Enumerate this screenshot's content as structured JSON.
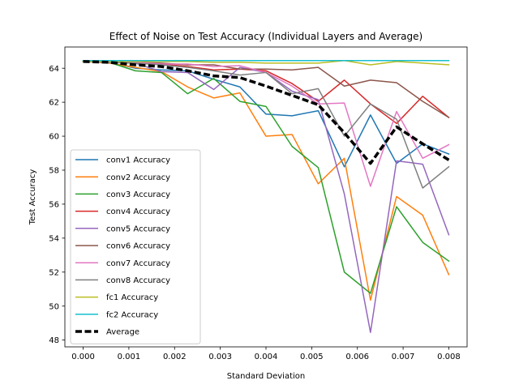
{
  "chart_data": {
    "type": "line",
    "title": "Effect of Noise on Test Accuracy (Individual Layers and Average)",
    "xlabel": "Standard Deviation",
    "ylabel": "Test Accuracy",
    "xlim": [
      -0.0004,
      0.0084
    ],
    "ylim": [
      47.6,
      65.25
    ],
    "xticks": [
      0.0,
      0.001,
      0.002,
      0.003,
      0.004,
      0.005,
      0.006,
      0.007,
      0.008
    ],
    "xtick_labels": [
      "0.000",
      "0.001",
      "0.002",
      "0.003",
      "0.004",
      "0.005",
      "0.006",
      "0.007",
      "0.008"
    ],
    "yticks": [
      48,
      50,
      52,
      54,
      56,
      58,
      60,
      62,
      64
    ],
    "ytick_labels": [
      "48",
      "50",
      "52",
      "54",
      "56",
      "58",
      "60",
      "62",
      "64"
    ],
    "grid": false,
    "legend_position": "lower-left",
    "x": [
      0.0,
      0.000571,
      0.001143,
      0.001714,
      0.002286,
      0.002857,
      0.003429,
      0.004,
      0.004571,
      0.005143,
      0.005714,
      0.006286,
      0.006857,
      0.007429,
      0.008
    ],
    "series": [
      {
        "name": "conv1 Accuracy",
        "color": "#1f77b4",
        "style": "solid",
        "values": [
          64.4,
          64.35,
          64.0,
          63.9,
          63.85,
          63.35,
          62.9,
          61.3,
          61.2,
          61.5,
          58.2,
          61.25,
          58.4,
          59.55,
          58.95
        ]
      },
      {
        "name": "conv2 Accuracy",
        "color": "#ff7f0e",
        "style": "solid",
        "values": [
          64.4,
          64.3,
          64.05,
          63.8,
          62.9,
          62.25,
          62.55,
          60.0,
          60.1,
          57.2,
          58.7,
          50.35,
          56.45,
          55.35,
          51.85
        ]
      },
      {
        "name": "conv3 Accuracy",
        "color": "#2ca02c",
        "style": "solid",
        "values": [
          64.4,
          64.35,
          63.85,
          63.75,
          62.5,
          63.4,
          62.05,
          61.75,
          59.4,
          58.15,
          52.0,
          50.75,
          55.85,
          53.75,
          52.65
        ]
      },
      {
        "name": "conv4 Accuracy",
        "color": "#d62728",
        "style": "solid",
        "values": [
          64.4,
          64.35,
          64.3,
          64.25,
          64.1,
          63.9,
          63.95,
          63.85,
          63.1,
          62.05,
          63.3,
          61.9,
          60.75,
          62.35,
          61.1
        ]
      },
      {
        "name": "conv5 Accuracy",
        "color": "#9467bd",
        "style": "solid",
        "values": [
          64.4,
          64.35,
          64.3,
          63.8,
          63.75,
          62.75,
          64.05,
          63.75,
          62.65,
          62.15,
          56.6,
          48.45,
          58.55,
          58.35,
          54.2
        ]
      },
      {
        "name": "conv6 Accuracy",
        "color": "#8c564b",
        "style": "solid",
        "values": [
          64.4,
          64.4,
          64.35,
          64.3,
          64.2,
          64.2,
          63.95,
          63.95,
          63.9,
          64.05,
          62.95,
          63.3,
          63.15,
          62.05,
          61.1
        ]
      },
      {
        "name": "conv7 Accuracy",
        "color": "#e377c2",
        "style": "solid",
        "values": [
          64.4,
          64.35,
          64.35,
          64.25,
          64.25,
          64.1,
          64.15,
          63.75,
          62.95,
          61.9,
          61.95,
          57.05,
          61.45,
          58.7,
          59.5
        ]
      },
      {
        "name": "conv8 Accuracy",
        "color": "#7f7f7f",
        "style": "solid",
        "values": [
          64.4,
          64.35,
          64.3,
          64.2,
          64.05,
          63.85,
          63.6,
          63.75,
          62.5,
          62.8,
          60.0,
          61.9,
          61.0,
          56.95,
          58.2
        ]
      },
      {
        "name": "fc1 Accuracy",
        "color": "#bcbd22",
        "style": "solid",
        "values": [
          64.4,
          64.4,
          64.4,
          64.4,
          64.4,
          64.35,
          64.35,
          64.3,
          64.3,
          64.3,
          64.45,
          64.2,
          64.4,
          64.3,
          64.2
        ]
      },
      {
        "name": "fc2 Accuracy",
        "color": "#17becf",
        "style": "solid",
        "values": [
          64.45,
          64.45,
          64.45,
          64.45,
          64.45,
          64.45,
          64.45,
          64.45,
          64.45,
          64.45,
          64.45,
          64.45,
          64.45,
          64.45,
          64.45
        ]
      },
      {
        "name": "Average",
        "color": "#000000",
        "style": "dashed",
        "values": [
          64.4,
          64.35,
          64.2,
          64.1,
          63.85,
          63.55,
          63.45,
          62.95,
          62.4,
          61.85,
          60.2,
          58.4,
          60.55,
          59.55,
          58.6
        ]
      }
    ]
  }
}
